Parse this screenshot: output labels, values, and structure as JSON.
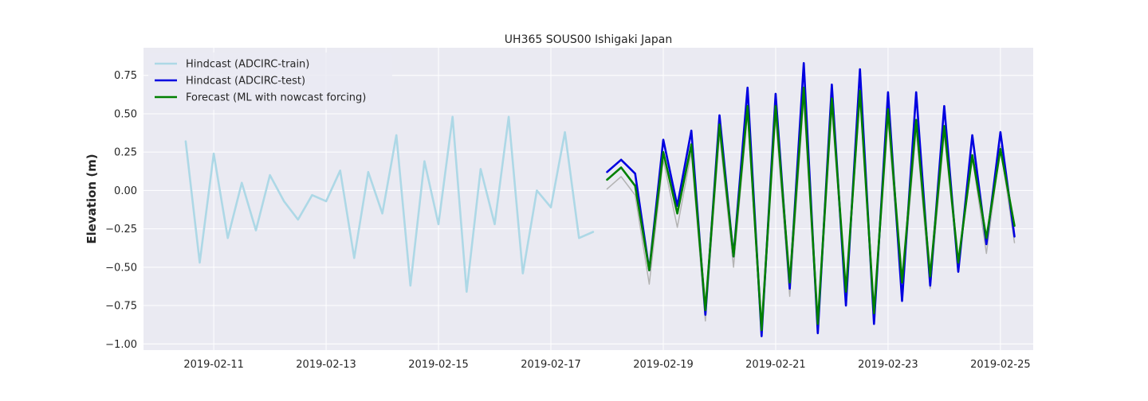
{
  "chart_data": {
    "type": "line",
    "title": "UH365 SOUS00 Ishigaki Japan",
    "xlabel": "",
    "ylabel": "Elevation (m)",
    "xlim": [
      "2019-02-09T18:00",
      "2019-02-25T14:00"
    ],
    "ylim": [
      -1.04,
      0.93
    ],
    "x_tick_labels": [
      "2019-02-11",
      "2019-02-13",
      "2019-02-15",
      "2019-02-17",
      "2019-02-19",
      "2019-02-21",
      "2019-02-23",
      "2019-02-25"
    ],
    "y_tick_labels": [
      "0.75",
      "0.50",
      "0.25",
      "0.00",
      "−0.25",
      "−0.50",
      "−0.75",
      "−1.00"
    ],
    "y_tick_values": [
      0.75,
      0.5,
      0.25,
      0.0,
      -0.25,
      -0.5,
      -0.75,
      -1.0
    ],
    "grid": true,
    "legend_position": "upper-left",
    "series": [
      {
        "name": "Hindcast (ADCIRC-train)",
        "color": "#add8e6",
        "x": [
          "2019-02-10T12:00",
          "2019-02-10T18:00",
          "2019-02-11T00:00",
          "2019-02-11T06:00",
          "2019-02-11T12:00",
          "2019-02-11T18:00",
          "2019-02-12T00:00",
          "2019-02-12T06:00",
          "2019-02-12T12:00",
          "2019-02-12T18:00",
          "2019-02-13T00:00",
          "2019-02-13T06:00",
          "2019-02-13T12:00",
          "2019-02-13T18:00",
          "2019-02-14T00:00",
          "2019-02-14T06:00",
          "2019-02-14T12:00",
          "2019-02-14T18:00",
          "2019-02-15T00:00",
          "2019-02-15T06:00",
          "2019-02-15T12:00",
          "2019-02-15T18:00",
          "2019-02-16T00:00",
          "2019-02-16T06:00",
          "2019-02-16T12:00",
          "2019-02-16T18:00",
          "2019-02-17T00:00",
          "2019-02-17T06:00",
          "2019-02-17T12:00",
          "2019-02-17T18:00"
        ],
        "y": [
          0.32,
          -0.47,
          0.24,
          -0.31,
          0.05,
          -0.26,
          0.1,
          -0.07,
          -0.19,
          -0.03,
          -0.07,
          0.13,
          -0.44,
          0.12,
          -0.15,
          0.36,
          -0.62,
          0.19,
          -0.22,
          0.48,
          -0.66,
          0.14,
          -0.22,
          0.48,
          -0.54,
          0.0,
          -0.11,
          0.38,
          -0.31,
          -0.27
        ]
      },
      {
        "name": "",
        "color": "#b3b3b3",
        "x": [
          "2019-02-18T00:00",
          "2019-02-18T06:00",
          "2019-02-18T12:00",
          "2019-02-18T18:00",
          "2019-02-19T00:00",
          "2019-02-19T06:00",
          "2019-02-19T12:00",
          "2019-02-19T18:00",
          "2019-02-20T00:00",
          "2019-02-20T06:00",
          "2019-02-20T12:00",
          "2019-02-20T18:00",
          "2019-02-21T00:00",
          "2019-02-21T06:00",
          "2019-02-21T12:00",
          "2019-02-21T18:00",
          "2019-02-22T00:00",
          "2019-02-22T06:00",
          "2019-02-22T12:00",
          "2019-02-22T18:00",
          "2019-02-23T00:00",
          "2019-02-23T06:00",
          "2019-02-23T12:00",
          "2019-02-23T18:00",
          "2019-02-24T00:00",
          "2019-02-24T06:00",
          "2019-02-24T12:00",
          "2019-02-24T18:00",
          "2019-02-25T00:00",
          "2019-02-25T06:00"
        ],
        "y": [
          0.01,
          0.09,
          -0.03,
          -0.61,
          0.2,
          -0.24,
          0.25,
          -0.85,
          0.37,
          -0.5,
          0.5,
          -0.95,
          0.48,
          -0.69,
          0.6,
          -0.93,
          0.54,
          -0.7,
          0.62,
          -0.83,
          0.46,
          -0.68,
          0.4,
          -0.64,
          0.37,
          -0.5,
          0.22,
          -0.41,
          0.29,
          -0.34
        ]
      },
      {
        "name": "Hindcast (ADCIRC-test)",
        "color": "#0000e0",
        "x": [
          "2019-02-18T00:00",
          "2019-02-18T06:00",
          "2019-02-18T12:00",
          "2019-02-18T18:00",
          "2019-02-19T00:00",
          "2019-02-19T06:00",
          "2019-02-19T12:00",
          "2019-02-19T18:00",
          "2019-02-20T00:00",
          "2019-02-20T06:00",
          "2019-02-20T12:00",
          "2019-02-20T18:00",
          "2019-02-21T00:00",
          "2019-02-21T06:00",
          "2019-02-21T12:00",
          "2019-02-21T18:00",
          "2019-02-22T00:00",
          "2019-02-22T06:00",
          "2019-02-22T12:00",
          "2019-02-22T18:00",
          "2019-02-23T00:00",
          "2019-02-23T06:00",
          "2019-02-23T12:00",
          "2019-02-23T18:00",
          "2019-02-24T00:00",
          "2019-02-24T06:00",
          "2019-02-24T12:00",
          "2019-02-24T18:00",
          "2019-02-25T00:00",
          "2019-02-25T06:00"
        ],
        "y": [
          0.12,
          0.2,
          0.11,
          -0.52,
          0.33,
          -0.1,
          0.39,
          -0.81,
          0.49,
          -0.43,
          0.67,
          -0.95,
          0.63,
          -0.64,
          0.83,
          -0.93,
          0.69,
          -0.75,
          0.79,
          -0.87,
          0.64,
          -0.72,
          0.64,
          -0.62,
          0.55,
          -0.53,
          0.36,
          -0.35,
          0.38,
          -0.3
        ]
      },
      {
        "name": "Forecast (ML with nowcast forcing)",
        "color": "#008000",
        "x": [
          "2019-02-18T00:00",
          "2019-02-18T06:00",
          "2019-02-18T12:00",
          "2019-02-18T18:00",
          "2019-02-19T00:00",
          "2019-02-19T06:00",
          "2019-02-19T12:00",
          "2019-02-19T18:00",
          "2019-02-20T00:00",
          "2019-02-20T06:00",
          "2019-02-20T12:00",
          "2019-02-20T18:00",
          "2019-02-21T00:00",
          "2019-02-21T06:00",
          "2019-02-21T12:00",
          "2019-02-21T18:00",
          "2019-02-22T00:00",
          "2019-02-22T06:00",
          "2019-02-22T12:00",
          "2019-02-22T18:00",
          "2019-02-23T00:00",
          "2019-02-23T06:00",
          "2019-02-23T12:00",
          "2019-02-23T18:00",
          "2019-02-24T00:00",
          "2019-02-24T06:00",
          "2019-02-24T12:00",
          "2019-02-24T18:00",
          "2019-02-25T00:00",
          "2019-02-25T06:00"
        ],
        "y": [
          0.07,
          0.15,
          0.03,
          -0.52,
          0.25,
          -0.15,
          0.3,
          -0.78,
          0.43,
          -0.43,
          0.55,
          -0.91,
          0.55,
          -0.6,
          0.67,
          -0.87,
          0.6,
          -0.66,
          0.65,
          -0.8,
          0.53,
          -0.6,
          0.46,
          -0.56,
          0.42,
          -0.47,
          0.23,
          -0.31,
          0.27,
          -0.23
        ]
      }
    ]
  }
}
